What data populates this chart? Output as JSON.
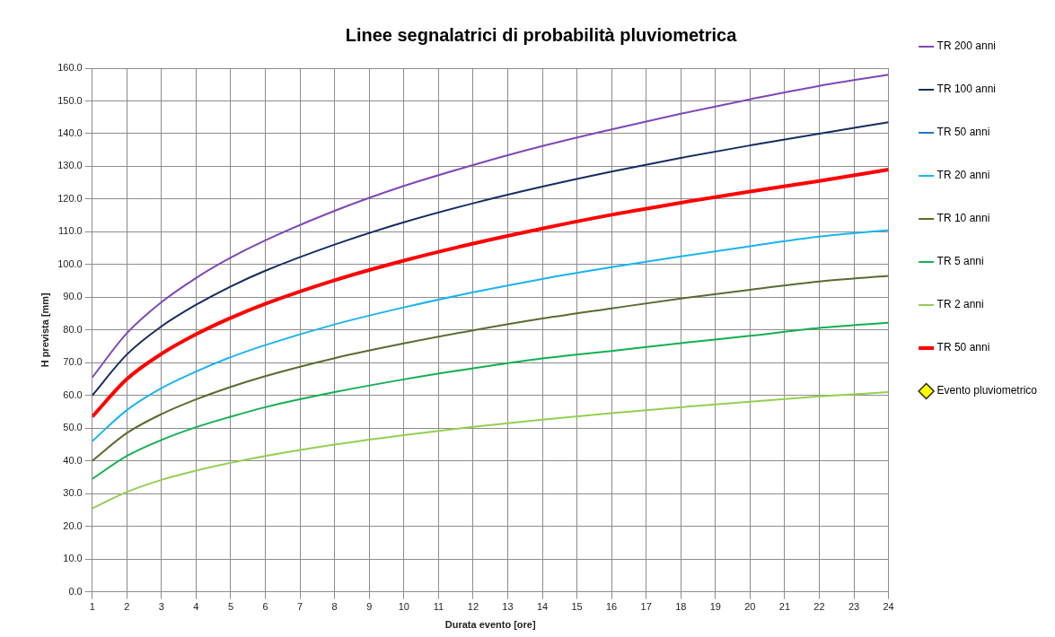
{
  "chart_data": {
    "type": "line",
    "title": "Linee segnalatrici di probabilità pluviometrica",
    "xlabel": "Durata evento [ore]",
    "ylabel": "H prevista [mm]",
    "xlim": [
      1,
      24
    ],
    "xticks": [
      1,
      2,
      3,
      4,
      5,
      6,
      7,
      8,
      9,
      10,
      11,
      12,
      13,
      14,
      15,
      16,
      17,
      18,
      19,
      20,
      21,
      22,
      23,
      24
    ],
    "ylim": [
      0,
      160
    ],
    "yticks": [
      {
        "value": 0,
        "label": "0.0"
      },
      {
        "value": 10,
        "label": "10.0"
      },
      {
        "value": 20,
        "label": "20.0"
      },
      {
        "value": 30,
        "label": "30.0"
      },
      {
        "value": 40,
        "label": "40.0"
      },
      {
        "value": 50,
        "label": "50.0"
      },
      {
        "value": 60,
        "label": "60.0"
      },
      {
        "value": 70,
        "label": "70.0"
      },
      {
        "value": 80,
        "label": "80.0"
      },
      {
        "value": 90,
        "label": "90.0"
      },
      {
        "value": 100,
        "label": "100.0"
      },
      {
        "value": 110,
        "label": "110.0"
      },
      {
        "value": 120,
        "label": "120.0"
      },
      {
        "value": 130,
        "label": "130.0"
      },
      {
        "value": 140,
        "label": "140.0"
      },
      {
        "value": 150,
        "label": "150.0"
      },
      {
        "value": 160,
        "label": "160.0"
      }
    ],
    "x": [
      1,
      2,
      3,
      4,
      5,
      6,
      8,
      10,
      12,
      14,
      16,
      18,
      20,
      22,
      24
    ],
    "grid": true,
    "legend": "right",
    "marker": "none",
    "series": [
      {
        "name": "TR 200 anni",
        "color": "#7f47b8",
        "values": [
          65.5,
          79,
          88.5,
          95.9,
          102.1,
          107.4,
          116.4,
          124,
          130.4,
          136.2,
          141.3,
          146.1,
          150.5,
          154.6,
          158
        ]
      },
      {
        "name": "TR 100 anni",
        "color": "#142d63",
        "values": [
          60,
          72.5,
          81.1,
          87.7,
          93.3,
          98.1,
          106.1,
          112.9,
          118.7,
          123.8,
          128.4,
          132.6,
          136.4,
          140,
          143.5
        ]
      },
      {
        "name": "TR 50 anni",
        "color": "#2079c7",
        "values": [
          null,
          null,
          null,
          null,
          null,
          null,
          null,
          null,
          null,
          null,
          null,
          null,
          null,
          null,
          null
        ]
      },
      {
        "name": "TR 20 anni",
        "color": "#19b4f0",
        "values": [
          46,
          55.5,
          62.2,
          67.3,
          71.7,
          75.4,
          81.7,
          86.9,
          91.5,
          95.6,
          99.2,
          102.5,
          105.6,
          108.5,
          110.5
        ]
      },
      {
        "name": "TR 10 anni",
        "color": "#5a6b30",
        "values": [
          40,
          48.5,
          54.3,
          58.8,
          62.6,
          65.9,
          71.4,
          75.9,
          79.9,
          83.5,
          86.6,
          89.6,
          92.3,
          94.8,
          96.5
        ]
      },
      {
        "name": "TR 5 anni",
        "color": "#12b050",
        "values": [
          34.5,
          41.5,
          46.4,
          50.3,
          53.5,
          56.4,
          61,
          64.9,
          68.3,
          71.3,
          73.6,
          76,
          78.2,
          80.6,
          82.2
        ]
      },
      {
        "name": "TR 2 anni",
        "color": "#92d050",
        "values": [
          25.5,
          30.5,
          34.2,
          37,
          39.4,
          41.5,
          45,
          47.9,
          50.4,
          52.6,
          54.6,
          56.4,
          58.1,
          59.7,
          61
        ]
      },
      {
        "name": "TR 50 anni",
        "color": "#ff0000",
        "values": [
          53.5,
          65,
          72.7,
          78.7,
          83.7,
          88,
          95.2,
          101.2,
          106.4,
          111,
          115.2,
          118.9,
          122.3,
          125.5,
          129
        ]
      },
      {
        "name": "Evento pluviometrico",
        "type": "scatter",
        "marker": "diamond",
        "color": "#ffff00",
        "values": [
          null,
          null,
          null,
          null,
          null,
          null,
          null,
          null,
          null,
          null,
          null,
          null,
          null,
          null,
          null
        ]
      }
    ]
  }
}
